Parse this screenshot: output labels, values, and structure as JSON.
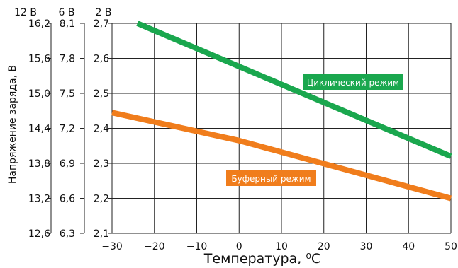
{
  "chart_data": {
    "type": "line",
    "xlabel": "Температура, ⁰С",
    "ylabel": "Напряжение заряда, В",
    "x_ticks": [
      "−30",
      "−20",
      "−10",
      "0",
      "10",
      "20",
      "30",
      "40",
      "50"
    ],
    "xlim": [
      -30,
      50
    ],
    "ylim": [
      2.1,
      2.7
    ],
    "y_axes": [
      {
        "header": "12 В",
        "ticks": [
          "16,2",
          "15,6",
          "15,0",
          "14,4",
          "13,8",
          "13,2",
          "12,6"
        ]
      },
      {
        "header": "6 В",
        "ticks": [
          "8,1",
          "7,8",
          "7,5",
          "7,2",
          "6,9",
          "6,6",
          "6,3"
        ]
      },
      {
        "header": "2 В",
        "ticks": [
          "2,7",
          "2,6",
          "2,5",
          "2,4",
          "2,3",
          "2,2",
          "2,1"
        ]
      }
    ],
    "grid": true,
    "series": [
      {
        "name": "Циклический режим",
        "color": "#1aa74e",
        "x": [
          -24,
          50
        ],
        "y": [
          2.7,
          2.32
        ]
      },
      {
        "name": "Буферный режим",
        "color": "#f07d1c",
        "x": [
          -30,
          0,
          50
        ],
        "y": [
          2.445,
          2.365,
          2.2
        ]
      }
    ]
  }
}
